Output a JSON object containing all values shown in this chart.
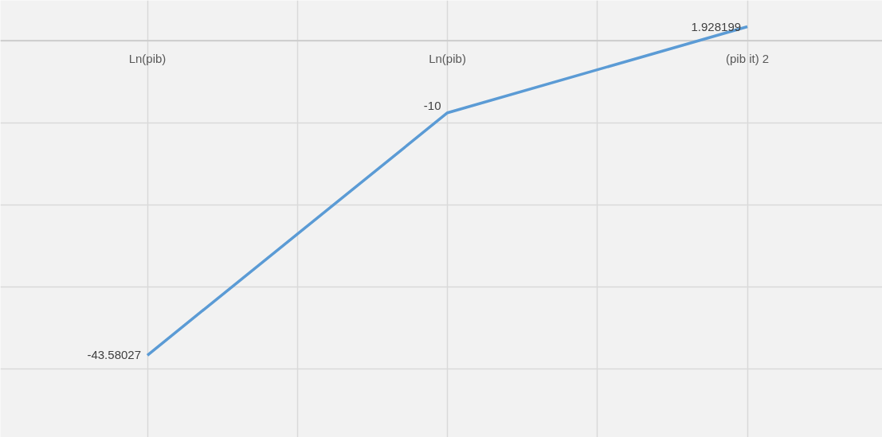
{
  "chart_data": {
    "type": "line",
    "categories": [
      "Ln(pib)",
      "Ln(pib)",
      "(pib it) 2"
    ],
    "series": [
      {
        "color": "#5b9bd5",
        "values": [
          -43.58027,
          -10,
          1.928199
        ]
      }
    ],
    "data_labels": true,
    "grid": true,
    "marker": "none",
    "line_style": "solid"
  }
}
